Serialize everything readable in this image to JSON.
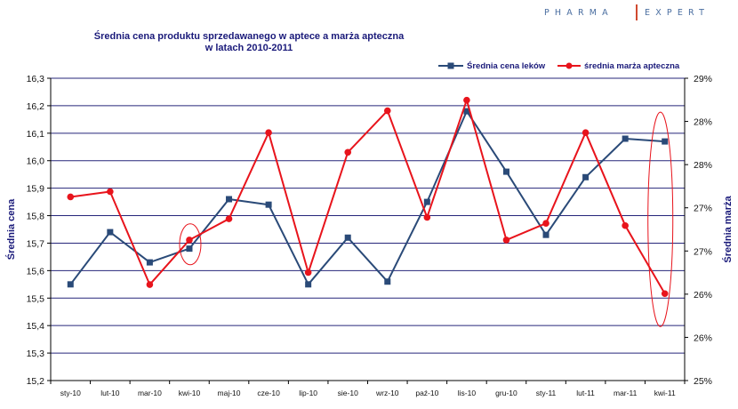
{
  "brand": {
    "left": "PHARMA",
    "right": "EXPERT"
  },
  "chart_data": {
    "type": "line",
    "title": "Średnia cena  produktu  sprzedawanego  w aptece  a marża apteczna",
    "subtitle": "w latach 2010-2011",
    "categories": [
      "sty-10",
      "lut-10",
      "mar-10",
      "kwi-10",
      "maj-10",
      "cze-10",
      "lip-10",
      "sie-10",
      "wrz-10",
      "paź-10",
      "lis-10",
      "gru-10",
      "sty-11",
      "lut-11",
      "mar-11",
      "kwi-11"
    ],
    "ylabel": "Średnia cena",
    "y2label": "Średnia marża",
    "ylim": [
      15.2,
      16.3
    ],
    "y2lim": [
      25,
      29
    ],
    "y_ticks": [
      "15,2",
      "15,3",
      "15,4",
      "15,5",
      "15,6",
      "15,7",
      "15,8",
      "15,9",
      "16,0",
      "16,1",
      "16,2",
      "16,3"
    ],
    "y2_ticks": [
      "25%",
      "26%",
      "26%",
      "27%",
      "27%",
      "28%",
      "28%",
      "29%"
    ],
    "grid": true,
    "legend_position": "top-right",
    "series": [
      {
        "name": "Średnia cena leków",
        "axis": "left",
        "color": "#2a4a78",
        "marker": "square",
        "values": [
          15.55,
          15.74,
          15.63,
          15.68,
          15.86,
          15.84,
          15.55,
          15.72,
          15.56,
          15.85,
          16.18,
          15.96,
          15.73,
          15.94,
          16.08,
          16.07
        ]
      },
      {
        "name": "średnia marża apteczna",
        "axis": "right",
        "color": "#e8141c",
        "marker": "circle",
        "values": [
          27.43,
          27.5,
          26.27,
          26.86,
          27.14,
          28.28,
          26.43,
          28.02,
          28.57,
          27.16,
          28.71,
          26.86,
          27.08,
          28.28,
          27.05,
          26.15
        ]
      }
    ],
    "annotations": [
      {
        "type": "ellipse",
        "category": "kwi-10",
        "color": "#e8141c"
      },
      {
        "type": "ellipse",
        "category": "kwi-11",
        "color": "#e8141c"
      }
    ]
  }
}
